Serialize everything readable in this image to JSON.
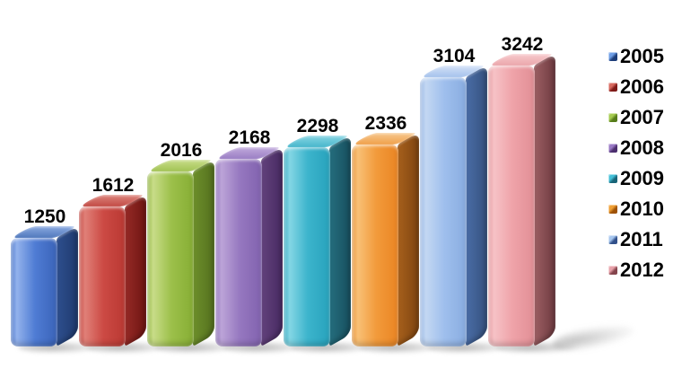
{
  "chart_data": {
    "type": "bar",
    "title": "",
    "categories": [
      "2005",
      "2006",
      "2007",
      "2008",
      "2009",
      "2010",
      "2011",
      "2012"
    ],
    "values": [
      1250,
      1612,
      2016,
      2168,
      2298,
      2336,
      3104,
      3242
    ],
    "ylim": [
      0,
      3360
    ],
    "xlabel": "",
    "ylabel": "",
    "grid": false,
    "axes_visible": false,
    "legend_position": "right",
    "background_color": "#ffffff",
    "label_color": "#000000",
    "bars": [
      {
        "year": "2005",
        "value": 1250,
        "label": "1250",
        "colors": {
          "front_hl": "#93b2ec",
          "front_main": "#4f7cd4",
          "front_dark": "#3a63b8",
          "side": "#2e4f8e",
          "side_dark": "#1f3a6e",
          "top": "#5078bc",
          "top_light": "#85a5dd",
          "marker_light": "#6f9ee6",
          "marker_dark": "#1c3c78"
        }
      },
      {
        "year": "2006",
        "value": 1612,
        "label": "1612",
        "colors": {
          "front_hl": "#e08078",
          "front_main": "#cc4a44",
          "front_dark": "#b93832",
          "side": "#962a26",
          "side_dark": "#6e1512",
          "top": "#c24a44",
          "top_light": "#da8078",
          "marker_light": "#d96a60",
          "marker_dark": "#7e1a18"
        }
      },
      {
        "year": "2007",
        "value": 2016,
        "label": "2016",
        "colors": {
          "front_hl": "#c8dc88",
          "front_main": "#9cc04a",
          "front_dark": "#86ad34",
          "side": "#6d8f2b",
          "side_dark": "#54701e",
          "top": "#a2c354",
          "top_light": "#c4da84",
          "marker_light": "#a6cc50",
          "marker_dark": "#567c1a"
        }
      },
      {
        "year": "2008",
        "value": 2168,
        "label": "2168",
        "colors": {
          "front_hl": "#bca4d8",
          "front_main": "#9678c0",
          "front_dark": "#8162ae",
          "side": "#63427c",
          "side_dark": "#472a62",
          "top": "#9a7ec4",
          "top_light": "#bda6da",
          "marker_light": "#9a7ac6",
          "marker_dark": "#4c2f6e"
        }
      },
      {
        "year": "2009",
        "value": 2298,
        "label": "2298",
        "colors": {
          "front_hl": "#84d6e4",
          "front_main": "#3cb4cc",
          "front_dark": "#27a2bc",
          "side": "#256e7e",
          "side_dark": "#174f5e",
          "top": "#46b6cc",
          "top_light": "#82d2e0",
          "marker_light": "#44c0d8",
          "marker_dark": "#186478"
        }
      },
      {
        "year": "2010",
        "value": 2336,
        "label": "2336",
        "colors": {
          "front_hl": "#f8c076",
          "front_main": "#f29b3c",
          "front_dark": "#ea8422",
          "side": "#a7601c",
          "side_dark": "#7e4410",
          "top": "#f0a04a",
          "top_light": "#f6c488",
          "marker_light": "#f0a035",
          "marker_dark": "#9e5206"
        }
      },
      {
        "year": "2011",
        "value": 3104,
        "label": "3104",
        "colors": {
          "front_hl": "#c3d7f2",
          "front_main": "#9fbfed",
          "front_dark": "#88ace0",
          "side": "#4a6da6",
          "side_dark": "#35517e",
          "top": "#a5c2ec",
          "top_light": "#cfdef6",
          "marker_light": "#a7c7ef",
          "marker_dark": "#31508a"
        }
      },
      {
        "year": "2012",
        "value": 3242,
        "label": "3242",
        "colors": {
          "front_hl": "#f6c2c6",
          "front_main": "#efa3a9",
          "front_dark": "#e18e95",
          "side": "#9c5f63",
          "side_dark": "#6e3a40",
          "top": "#eba6ab",
          "top_light": "#f6c6c9",
          "marker_light": "#e8a2aa",
          "marker_dark": "#84444c"
        }
      }
    ]
  }
}
